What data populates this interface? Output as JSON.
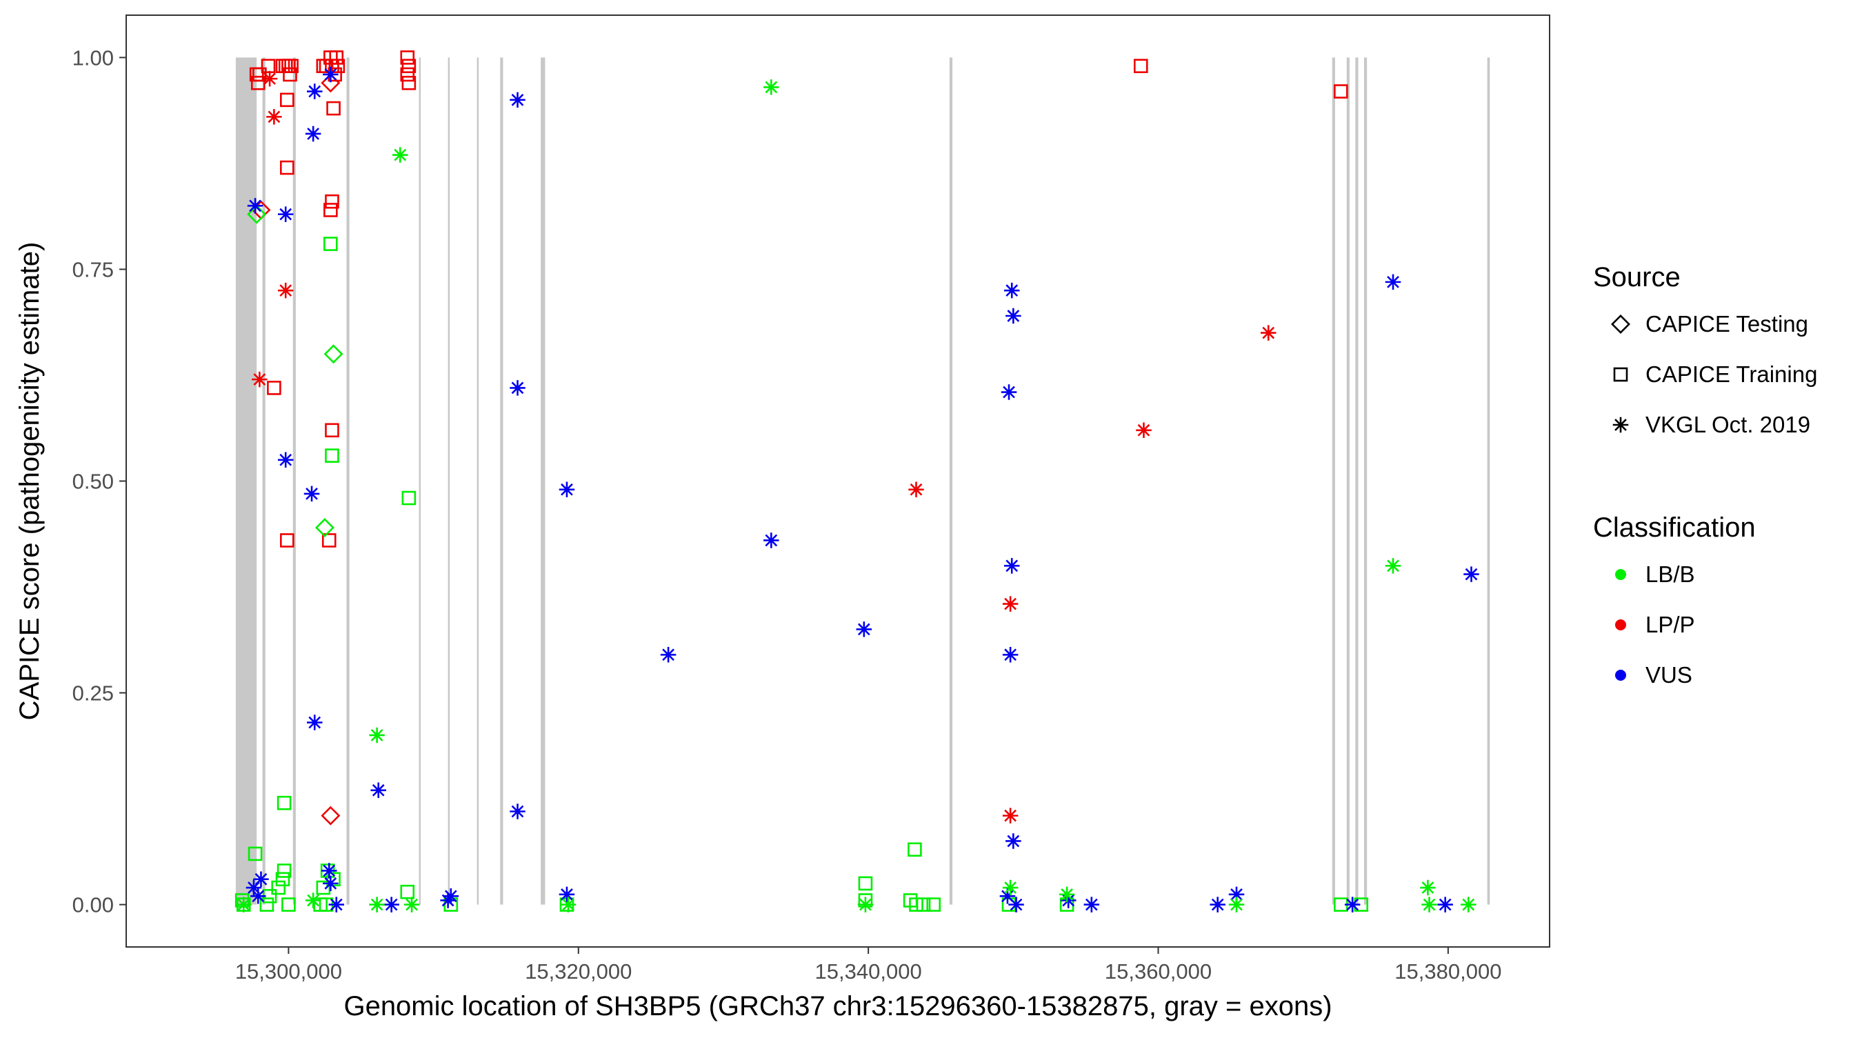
{
  "chart_data": {
    "type": "scatter",
    "title": "",
    "xlabel": "Genomic location of SH3BP5 (GRCh37 chr3:15296360-15382875, gray = exons)",
    "ylabel": "CAPICE score (pathogenicity estimate)",
    "xlim": [
      15288800,
      15387000
    ],
    "ylim": [
      -0.05,
      1.05
    ],
    "x_ticks": [
      15300000,
      15320000,
      15340000,
      15360000,
      15380000
    ],
    "x_tick_labels": [
      "15,300,000",
      "15,320,000",
      "15,340,000",
      "15,360,000",
      "15,380,000"
    ],
    "y_ticks": [
      0,
      0.25,
      0.5,
      0.75,
      1.0
    ],
    "y_tick_labels": [
      "0.00",
      "0.25",
      "0.50",
      "0.75",
      "1.00"
    ],
    "grid": false,
    "legend_position": "right",
    "exons": [
      [
        15296360,
        15297800
      ],
      [
        15298200,
        15298400
      ],
      [
        15300300,
        15300500
      ],
      [
        15304000,
        15304200
      ],
      [
        15309000,
        15309100
      ],
      [
        15311000,
        15311100
      ],
      [
        15313000,
        15313100
      ],
      [
        15314600,
        15314800
      ],
      [
        15317400,
        15317700
      ],
      [
        15345600,
        15345800
      ],
      [
        15372000,
        15372200
      ],
      [
        15373000,
        15373200
      ],
      [
        15373600,
        15373800
      ],
      [
        15374200,
        15374400
      ],
      [
        15382700,
        15382875
      ]
    ],
    "legend": {
      "source_title": "Source",
      "source_items": [
        {
          "label": "CAPICE Testing",
          "shape": "diamond"
        },
        {
          "label": "CAPICE Training",
          "shape": "square"
        },
        {
          "label": "VKGL Oct. 2019",
          "shape": "star"
        }
      ],
      "class_title": "Classification",
      "class_items": [
        {
          "label": "LB/B",
          "color": "#00ee00"
        },
        {
          "label": "LP/P",
          "color": "#ee0000"
        },
        {
          "label": "VUS",
          "color": "#0000ee"
        }
      ]
    },
    "colors": {
      "LB/B": "#00ee00",
      "LP/P": "#ee0000",
      "VUS": "#0000ee"
    },
    "series": [
      {
        "name": "CAPICE Training",
        "shape": "square",
        "points": [
          [
            15297800,
            0.98,
            "LP/P"
          ],
          [
            15297900,
            0.97,
            "LP/P"
          ],
          [
            15298000,
            0.98,
            "LP/P"
          ],
          [
            15298600,
            0.99,
            "LP/P"
          ],
          [
            15299600,
            0.99,
            "LP/P"
          ],
          [
            15299800,
            0.99,
            "LP/P"
          ],
          [
            15300000,
            0.99,
            "LP/P"
          ],
          [
            15300100,
            0.98,
            "LP/P"
          ],
          [
            15300200,
            0.99,
            "LP/P"
          ],
          [
            15299900,
            0.95,
            "LP/P"
          ],
          [
            15299900,
            0.87,
            "LP/P"
          ],
          [
            15299000,
            0.61,
            "LP/P"
          ],
          [
            15299900,
            0.43,
            "LP/P"
          ],
          [
            15302400,
            0.99,
            "LP/P"
          ],
          [
            15302600,
            0.99,
            "LP/P"
          ],
          [
            15302900,
            1.0,
            "LP/P"
          ],
          [
            15303000,
            0.99,
            "LP/P"
          ],
          [
            15303200,
            0.98,
            "LP/P"
          ],
          [
            15303300,
            1.0,
            "LP/P"
          ],
          [
            15303400,
            0.99,
            "LP/P"
          ],
          [
            15303100,
            0.94,
            "LP/P"
          ],
          [
            15303000,
            0.83,
            "LP/P"
          ],
          [
            15302900,
            0.82,
            "LP/P"
          ],
          [
            15303000,
            0.56,
            "LP/P"
          ],
          [
            15302800,
            0.43,
            "LP/P"
          ],
          [
            15308200,
            1.0,
            "LP/P"
          ],
          [
            15308300,
            0.99,
            "LP/P"
          ],
          [
            15308200,
            0.98,
            "LP/P"
          ],
          [
            15308300,
            0.97,
            "LP/P"
          ],
          [
            15358800,
            0.99,
            "LP/P"
          ],
          [
            15372600,
            0.96,
            "LP/P"
          ],
          [
            15302900,
            0.78,
            "LB/B"
          ],
          [
            15303000,
            0.53,
            "LB/B"
          ],
          [
            15308300,
            0.48,
            "LB/B"
          ],
          [
            15299700,
            0.12,
            "LB/B"
          ],
          [
            15297700,
            0.06,
            "LB/B"
          ],
          [
            15299700,
            0.04,
            "LB/B"
          ],
          [
            15299600,
            0.03,
            "LB/B"
          ],
          [
            15302700,
            0.04,
            "LB/B"
          ],
          [
            15303100,
            0.03,
            "LB/B"
          ],
          [
            15302400,
            0.02,
            "LB/B"
          ],
          [
            15296800,
            0.005,
            "LB/B"
          ],
          [
            15296900,
            0.0,
            "LB/B"
          ],
          [
            15298500,
            0.0,
            "LB/B"
          ],
          [
            15298700,
            0.01,
            "LB/B"
          ],
          [
            15299300,
            0.02,
            "LB/B"
          ],
          [
            15300000,
            0.0,
            "LB/B"
          ],
          [
            15302200,
            0.0,
            "LB/B"
          ],
          [
            15302600,
            0.0,
            "LB/B"
          ],
          [
            15308200,
            0.015,
            "LB/B"
          ],
          [
            15311200,
            0.0,
            "LB/B"
          ],
          [
            15319200,
            0.0,
            "LB/B"
          ],
          [
            15339800,
            0.025,
            "LB/B"
          ],
          [
            15339800,
            0.005,
            "LB/B"
          ],
          [
            15343200,
            0.065,
            "LB/B"
          ],
          [
            15342900,
            0.005,
            "LB/B"
          ],
          [
            15343300,
            0.0,
            "LB/B"
          ],
          [
            15343800,
            0.0,
            "LB/B"
          ],
          [
            15344500,
            0.0,
            "LB/B"
          ],
          [
            15349700,
            0.0,
            "LB/B"
          ],
          [
            15353700,
            0.0,
            "LB/B"
          ],
          [
            15372600,
            0.0,
            "LB/B"
          ],
          [
            15374000,
            0.0,
            "LB/B"
          ]
        ]
      },
      {
        "name": "CAPICE Testing",
        "shape": "diamond",
        "points": [
          [
            15298100,
            0.82,
            "LP/P"
          ],
          [
            15302900,
            0.97,
            "LP/P"
          ],
          [
            15302900,
            0.105,
            "LP/P"
          ],
          [
            15297800,
            0.815,
            "LB/B"
          ],
          [
            15303100,
            0.65,
            "LB/B"
          ],
          [
            15302500,
            0.445,
            "LB/B"
          ]
        ]
      },
      {
        "name": "VKGL Oct. 2019",
        "shape": "star",
        "points": [
          [
            15298700,
            0.975,
            "LP/P"
          ],
          [
            15299000,
            0.93,
            "LP/P"
          ],
          [
            15299800,
            0.725,
            "LP/P"
          ],
          [
            15298000,
            0.62,
            "LP/P"
          ],
          [
            15343300,
            0.49,
            "LP/P"
          ],
          [
            15349800,
            0.355,
            "LP/P"
          ],
          [
            15349800,
            0.105,
            "LP/P"
          ],
          [
            15359000,
            0.56,
            "LP/P"
          ],
          [
            15367600,
            0.675,
            "LP/P"
          ],
          [
            15301800,
            0.96,
            "VUS"
          ],
          [
            15302900,
            0.98,
            "VUS"
          ],
          [
            15301700,
            0.91,
            "VUS"
          ],
          [
            15297700,
            0.825,
            "VUS"
          ],
          [
            15299800,
            0.815,
            "VUS"
          ],
          [
            15299800,
            0.525,
            "VUS"
          ],
          [
            15301600,
            0.485,
            "VUS"
          ],
          [
            15301800,
            0.215,
            "VUS"
          ],
          [
            15306200,
            0.135,
            "VUS"
          ],
          [
            15315800,
            0.95,
            "VUS"
          ],
          [
            15315800,
            0.61,
            "VUS"
          ],
          [
            15315800,
            0.11,
            "VUS"
          ],
          [
            15319200,
            0.49,
            "VUS"
          ],
          [
            15326200,
            0.295,
            "VUS"
          ],
          [
            15333300,
            0.43,
            "VUS"
          ],
          [
            15339700,
            0.325,
            "VUS"
          ],
          [
            15349900,
            0.725,
            "VUS"
          ],
          [
            15350000,
            0.695,
            "VUS"
          ],
          [
            15349700,
            0.605,
            "VUS"
          ],
          [
            15349900,
            0.4,
            "VUS"
          ],
          [
            15349800,
            0.295,
            "VUS"
          ],
          [
            15350000,
            0.075,
            "VUS"
          ],
          [
            15376200,
            0.735,
            "VUS"
          ],
          [
            15381600,
            0.39,
            "VUS"
          ],
          [
            15297600,
            0.02,
            "VUS"
          ],
          [
            15298100,
            0.03,
            "VUS"
          ],
          [
            15297900,
            0.01,
            "VUS"
          ],
          [
            15302800,
            0.04,
            "VUS"
          ],
          [
            15302900,
            0.025,
            "VUS"
          ],
          [
            15303300,
            0.0,
            "VUS"
          ],
          [
            15307100,
            0.0,
            "VUS"
          ],
          [
            15311200,
            0.01,
            "VUS"
          ],
          [
            15311000,
            0.005,
            "VUS"
          ],
          [
            15319200,
            0.012,
            "VUS"
          ],
          [
            15349600,
            0.01,
            "VUS"
          ],
          [
            15350200,
            0.0,
            "VUS"
          ],
          [
            15353800,
            0.005,
            "VUS"
          ],
          [
            15355400,
            0.0,
            "VUS"
          ],
          [
            15364100,
            0.0,
            "VUS"
          ],
          [
            15365400,
            0.012,
            "VUS"
          ],
          [
            15373400,
            0.0,
            "VUS"
          ],
          [
            15379800,
            0.0,
            "VUS"
          ],
          [
            15333300,
            0.965,
            "LB/B"
          ],
          [
            15307700,
            0.885,
            "LB/B"
          ],
          [
            15306100,
            0.2,
            "LB/B"
          ],
          [
            15376200,
            0.4,
            "LB/B"
          ],
          [
            15349800,
            0.02,
            "LB/B"
          ],
          [
            15353700,
            0.012,
            "LB/B"
          ],
          [
            15378600,
            0.02,
            "LB/B"
          ],
          [
            15301700,
            0.005,
            "LB/B"
          ],
          [
            15306100,
            0.0,
            "LB/B"
          ],
          [
            15308500,
            0.0,
            "LB/B"
          ],
          [
            15365400,
            0.0,
            "LB/B"
          ],
          [
            15378700,
            0.0,
            "LB/B"
          ],
          [
            15381400,
            0.0,
            "LB/B"
          ],
          [
            15296900,
            0.0,
            "LB/B"
          ],
          [
            15319300,
            0.0,
            "LB/B"
          ],
          [
            15339800,
            0.0,
            "LB/B"
          ]
        ]
      }
    ]
  }
}
